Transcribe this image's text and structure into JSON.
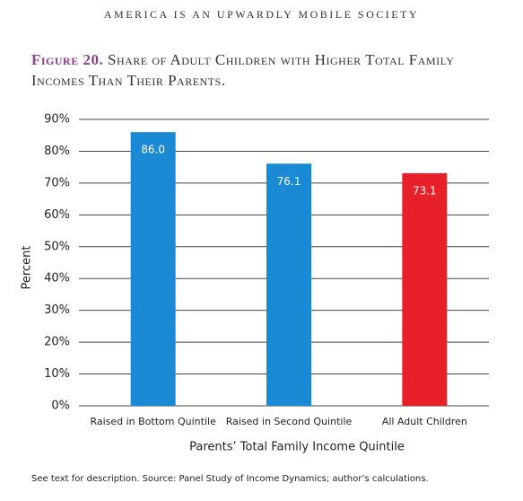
{
  "page_header": "AMERICA IS AN UPWARDLY MOBILE SOCIETY",
  "chart_data": {
    "type": "bar",
    "figure_label": "Figure 20.",
    "title": "Share of Adult Children with Higher Total Family Incomes Than Their Parents.",
    "categories": [
      "Raised in Bottom Quintile",
      "Raised in Second Quintile",
      "All Adult Children"
    ],
    "values": [
      86.0,
      76.1,
      73.1
    ],
    "value_labels": [
      "86.0",
      "76.1",
      "73.1"
    ],
    "colors": [
      "#1a8ad4",
      "#1a8ad4",
      "#e8202a"
    ],
    "ylim": [
      0,
      90
    ],
    "yticks": [
      {
        "value": 0,
        "label": "0%"
      },
      {
        "value": 10,
        "label": "10%"
      },
      {
        "value": 20,
        "label": "20%"
      },
      {
        "value": 30,
        "label": "30%"
      },
      {
        "value": 40,
        "label": "40%"
      },
      {
        "value": 50,
        "label": "50%"
      },
      {
        "value": 60,
        "label": "60%"
      },
      {
        "value": 70,
        "label": "70%"
      },
      {
        "value": 80,
        "label": "80%"
      },
      {
        "value": 90,
        "label": "90%"
      }
    ],
    "ylabel": "Percent",
    "xlabel": "Parents’ Total Family Income Quintile",
    "grid": true,
    "footnote": "See text for description. Source: Panel Study of Income Dynamics; author’s calculations."
  }
}
